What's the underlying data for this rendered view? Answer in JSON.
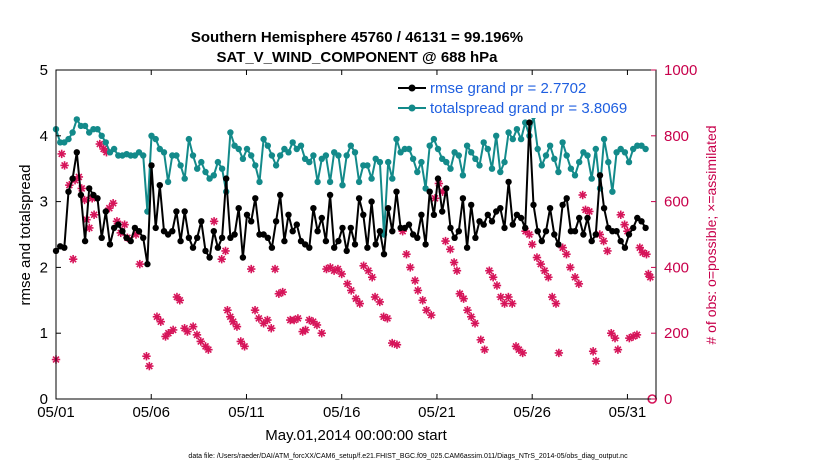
{
  "chart_data": {
    "type": "line",
    "title": "Southern Hemisphere 45760 / 46131 = 99.196%",
    "subtitle": "SAT_V_WIND_COMPONENT @ 688 hPa",
    "xlabel": "May.01,2014 00:00:00 start",
    "ylabel": "rmse and totalspread",
    "ylabel_right": "# of obs: o=possible; ×=assimilated",
    "footnote": "data file: /Users/raeder/DAI/ATM_forcXX/CAM6_setup/f.e21.FHIST_BGC.f09_025.CAM6assim.011/Diags_NTrS_2014-05/obs_diag_output.nc",
    "xlim": [
      0,
      31.5
    ],
    "ylim": [
      0,
      5
    ],
    "ylim_right": [
      0,
      1000
    ],
    "x_tick_labels": [
      "05/01",
      "05/06",
      "05/11",
      "05/16",
      "05/21",
      "05/26",
      "05/31"
    ],
    "x_tick_values": [
      0,
      5,
      10,
      15,
      20,
      25,
      30
    ],
    "y_ticks": [
      0,
      1,
      2,
      3,
      4,
      5
    ],
    "y_ticks_right": [
      0,
      200,
      400,
      600,
      800,
      1000
    ],
    "legend_position": "top-right",
    "series": [
      {
        "name": "rmse grand pr = 2.7702",
        "color": "#000000",
        "marker": "circle",
        "values": [
          2.25,
          2.32,
          2.3,
          3.15,
          3.35,
          3.75,
          3.1,
          2.4,
          3.2,
          3.1,
          3.05,
          2.45,
          2.85,
          2.35,
          2.6,
          2.65,
          2.55,
          2.45,
          2.4,
          2.6,
          2.55,
          2.45,
          2.05,
          3.55,
          2.6,
          3.25,
          2.55,
          2.5,
          2.55,
          2.85,
          2.4,
          2.85,
          2.45,
          2.3,
          2.45,
          2.7,
          2.25,
          2.15,
          2.55,
          2.3,
          2.45,
          3.35,
          2.45,
          2.5,
          2.9,
          2.15,
          2.8,
          2.7,
          3.05,
          2.5,
          2.5,
          2.45,
          2.3,
          2.7,
          3.1,
          2.4,
          2.8,
          2.55,
          2.65,
          2.4,
          2.35,
          2.3,
          2.9,
          2.55,
          2.75,
          2.4,
          3.1,
          2.3,
          2.4,
          2.6,
          2.25,
          2.6,
          2.35,
          3.05,
          2.8,
          2.3,
          3.0,
          2.35,
          2.55,
          2.2,
          2.9,
          2.55,
          3.15,
          2.6,
          2.6,
          2.65,
          2.5,
          2.45,
          2.8,
          2.35,
          3.15,
          2.8,
          3.35,
          2.85,
          3.2,
          2.6,
          2.45,
          2.55,
          3.05,
          2.3,
          2.95,
          2.45,
          2.7,
          2.65,
          2.8,
          2.7,
          2.85,
          2.9,
          2.6,
          3.3,
          2.65,
          2.8,
          2.75,
          2.6,
          4.2,
          2.95,
          2.55,
          2.4,
          2.55,
          2.9,
          2.5,
          2.35,
          2.95,
          3.05,
          2.55,
          2.55,
          2.75,
          2.5,
          2.75,
          2.4,
          2.5,
          3.4,
          2.9,
          2.6,
          2.55,
          2.55,
          2.4,
          2.3,
          2.5,
          2.6,
          2.75,
          2.7,
          2.6
        ],
        "x_start": 0,
        "x_step": 0.218
      },
      {
        "name": "totalspread grand pr = 3.8069",
        "color": "#138a8a",
        "marker": "circle",
        "values": [
          4.1,
          3.9,
          3.9,
          3.95,
          4.05,
          4.25,
          4.15,
          4.15,
          4.05,
          4.1,
          4.1,
          4.0,
          3.9,
          3.75,
          3.8,
          3.7,
          3.7,
          3.72,
          3.7,
          3.7,
          3.75,
          3.7,
          2.85,
          4.0,
          3.95,
          3.8,
          3.75,
          3.3,
          3.7,
          3.7,
          3.55,
          3.35,
          3.95,
          3.7,
          3.5,
          3.6,
          3.45,
          3.35,
          3.4,
          3.6,
          3.5,
          3.15,
          4.05,
          3.85,
          3.8,
          3.65,
          3.8,
          3.7,
          3.55,
          3.3,
          3.95,
          3.85,
          3.7,
          3.55,
          3.7,
          3.8,
          3.75,
          3.9,
          3.8,
          3.85,
          3.65,
          3.6,
          3.7,
          3.3,
          3.65,
          3.7,
          3.3,
          3.75,
          3.7,
          3.25,
          3.7,
          3.85,
          3.75,
          3.3,
          3.55,
          3.55,
          3.35,
          3.65,
          3.6,
          2.5,
          3.6,
          3.35,
          3.95,
          3.75,
          3.8,
          3.8,
          3.65,
          3.45,
          3.6,
          3.2,
          3.85,
          3.95,
          3.8,
          3.65,
          3.6,
          3.5,
          3.75,
          3.7,
          3.4,
          3.85,
          3.75,
          3.65,
          3.55,
          3.9,
          3.8,
          3.5,
          4.0,
          3.45,
          3.6,
          4.05,
          3.95,
          4.1,
          3.95,
          4.2,
          4.0,
          4.3,
          3.8,
          3.55,
          3.7,
          3.85,
          3.65,
          3.45,
          3.9,
          3.7,
          3.5,
          3.4,
          3.6,
          3.75,
          3.7,
          3.35,
          3.8,
          3.2,
          3.95,
          3.6,
          3.15,
          3.75,
          3.8,
          3.75,
          3.6,
          3.8,
          3.85,
          3.85,
          3.8
        ],
        "x_start": 0,
        "x_step": 0.218
      },
      {
        "name": "# of obs assimilated",
        "color": "#d6155a",
        "marker": "asterisk",
        "axis": "right",
        "points": [
          [
            0.0,
            120
          ],
          [
            0.3,
            745
          ],
          [
            0.45,
            710
          ],
          [
            0.7,
            650
          ],
          [
            0.9,
            425
          ],
          [
            1.0,
            665
          ],
          [
            1.2,
            675
          ],
          [
            1.35,
            640
          ],
          [
            1.5,
            605
          ],
          [
            1.6,
            545
          ],
          [
            1.75,
            520
          ],
          [
            1.9,
            610
          ],
          [
            2.0,
            560
          ],
          [
            2.3,
            775
          ],
          [
            2.5,
            760
          ],
          [
            2.65,
            750
          ],
          [
            2.8,
            580
          ],
          [
            3.0,
            595
          ],
          [
            3.2,
            540
          ],
          [
            3.4,
            505
          ],
          [
            3.6,
            530
          ],
          [
            3.75,
            490
          ],
          [
            4.2,
            500
          ],
          [
            4.4,
            410
          ],
          [
            4.75,
            130
          ],
          [
            4.9,
            100
          ],
          [
            5.3,
            250
          ],
          [
            5.5,
            235
          ],
          [
            5.75,
            190
          ],
          [
            5.9,
            200
          ],
          [
            6.15,
            210
          ],
          [
            6.35,
            310
          ],
          [
            6.5,
            300
          ],
          [
            6.75,
            215
          ],
          [
            6.9,
            205
          ],
          [
            7.2,
            220
          ],
          [
            7.4,
            195
          ],
          [
            7.6,
            175
          ],
          [
            7.85,
            160
          ],
          [
            8.0,
            150
          ],
          [
            8.3,
            540
          ],
          [
            8.7,
            425
          ],
          [
            8.9,
            450
          ],
          [
            9.0,
            270
          ],
          [
            9.15,
            250
          ],
          [
            9.3,
            235
          ],
          [
            9.5,
            220
          ],
          [
            9.7,
            175
          ],
          [
            9.9,
            160
          ],
          [
            10.25,
            395
          ],
          [
            10.45,
            270
          ],
          [
            10.65,
            245
          ],
          [
            10.9,
            230
          ],
          [
            11.1,
            240
          ],
          [
            11.3,
            215
          ],
          [
            11.5,
            395
          ],
          [
            11.7,
            320
          ],
          [
            11.9,
            325
          ],
          [
            12.3,
            240
          ],
          [
            12.5,
            240
          ],
          [
            12.7,
            245
          ],
          [
            12.95,
            205
          ],
          [
            13.1,
            210
          ],
          [
            13.3,
            240
          ],
          [
            13.5,
            235
          ],
          [
            13.7,
            225
          ],
          [
            13.95,
            200
          ],
          [
            14.2,
            395
          ],
          [
            14.4,
            400
          ],
          [
            14.6,
            390
          ],
          [
            14.8,
            395
          ],
          [
            15.0,
            380
          ],
          [
            15.3,
            350
          ],
          [
            15.5,
            330
          ],
          [
            15.75,
            305
          ],
          [
            15.95,
            290
          ],
          [
            16.15,
            405
          ],
          [
            16.4,
            390
          ],
          [
            16.6,
            370
          ],
          [
            16.75,
            310
          ],
          [
            17.0,
            295
          ],
          [
            17.2,
            250
          ],
          [
            17.4,
            245
          ],
          [
            17.65,
            170
          ],
          [
            17.9,
            165
          ],
          [
            18.2,
            510
          ],
          [
            18.4,
            440
          ],
          [
            18.6,
            400
          ],
          [
            18.85,
            360
          ],
          [
            19.0,
            330
          ],
          [
            19.25,
            300
          ],
          [
            19.45,
            270
          ],
          [
            19.7,
            255
          ],
          [
            19.9,
            610
          ],
          [
            20.1,
            655
          ],
          [
            20.3,
            630
          ],
          [
            20.45,
            480
          ],
          [
            20.7,
            455
          ],
          [
            20.9,
            415
          ],
          [
            21.05,
            390
          ],
          [
            21.2,
            320
          ],
          [
            21.4,
            305
          ],
          [
            21.6,
            270
          ],
          [
            21.8,
            250
          ],
          [
            22.0,
            230
          ],
          [
            22.3,
            180
          ],
          [
            22.5,
            150
          ],
          [
            22.75,
            390
          ],
          [
            22.95,
            370
          ],
          [
            23.15,
            345
          ],
          [
            23.35,
            310
          ],
          [
            23.55,
            290
          ],
          [
            23.75,
            310
          ],
          [
            23.95,
            290
          ],
          [
            24.15,
            160
          ],
          [
            24.3,
            150
          ],
          [
            24.5,
            140
          ],
          [
            24.65,
            510
          ],
          [
            24.85,
            500
          ],
          [
            25.0,
            470
          ],
          [
            25.25,
            430
          ],
          [
            25.45,
            410
          ],
          [
            25.65,
            390
          ],
          [
            25.85,
            370
          ],
          [
            26.05,
            310
          ],
          [
            26.25,
            290
          ],
          [
            26.4,
            140
          ],
          [
            26.6,
            460
          ],
          [
            26.8,
            440
          ],
          [
            27.0,
            400
          ],
          [
            27.25,
            370
          ],
          [
            27.45,
            350
          ],
          [
            27.65,
            620
          ],
          [
            27.8,
            575
          ],
          [
            28.0,
            570
          ],
          [
            28.2,
            145
          ],
          [
            28.35,
            115
          ],
          [
            28.55,
            500
          ],
          [
            28.75,
            480
          ],
          [
            28.95,
            450
          ],
          [
            29.15,
            200
          ],
          [
            29.35,
            185
          ],
          [
            29.5,
            150
          ],
          [
            29.65,
            560
          ],
          [
            29.85,
            530
          ],
          [
            30.0,
            510
          ],
          [
            30.1,
            185
          ],
          [
            30.3,
            190
          ],
          [
            30.5,
            195
          ],
          [
            30.65,
            460
          ],
          [
            30.8,
            445
          ],
          [
            31.0,
            440
          ],
          [
            31.1,
            380
          ],
          [
            31.2,
            370
          ]
        ]
      },
      {
        "name": "# of obs possible",
        "color": "#d6155a",
        "marker": "circle",
        "axis": "right",
        "points": [
          [
            31.3,
            0
          ]
        ]
      }
    ]
  }
}
